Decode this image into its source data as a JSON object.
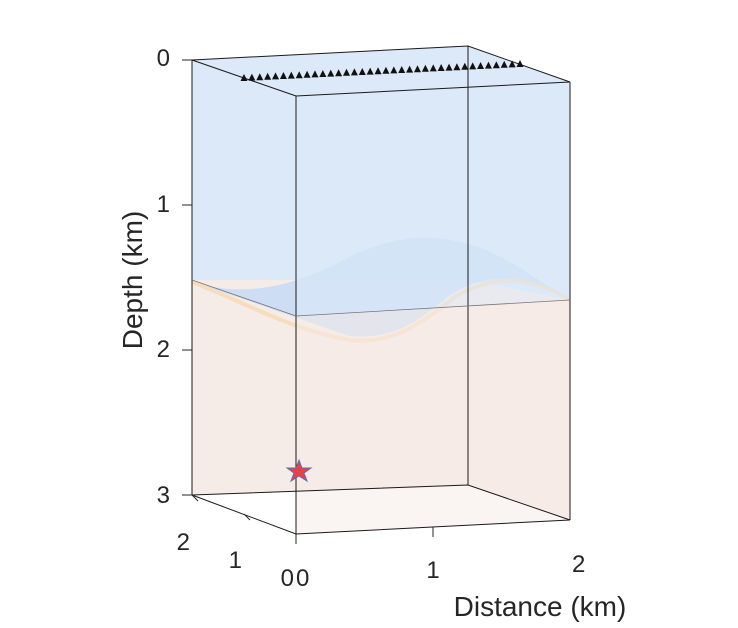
{
  "chart_data": {
    "type": "3d-layered-model",
    "xlabel": "Distance (km)",
    "zlabel": "Depth (km)",
    "x_ticks": [
      "0",
      "1",
      "2"
    ],
    "y_ticks": [
      "0",
      "1",
      "2"
    ],
    "z_ticks": [
      "0",
      "1",
      "2",
      "3"
    ],
    "xlim": [
      0,
      2
    ],
    "ylim": [
      0,
      2
    ],
    "zlim": [
      0,
      3
    ],
    "z_reversed": true,
    "receivers": {
      "marker": "triangle",
      "count": 36,
      "depth_km": 0,
      "y_km": 2,
      "x_range_km": [
        0.1,
        1.9
      ]
    },
    "source": {
      "marker": "star",
      "x_km": 0,
      "y_km": 0,
      "depth_km": 2.8
    },
    "interface": {
      "shape": "sinusoidal",
      "mean_depth_km": 1.6
    },
    "colors": {
      "upper_layer": "#dce9f8",
      "lower_layer": "#f5ebe7",
      "interface_surface": "#c8dcf5",
      "interface_edge": "#f7d9b5",
      "source": "#e8404a",
      "receivers": "#111111"
    }
  }
}
